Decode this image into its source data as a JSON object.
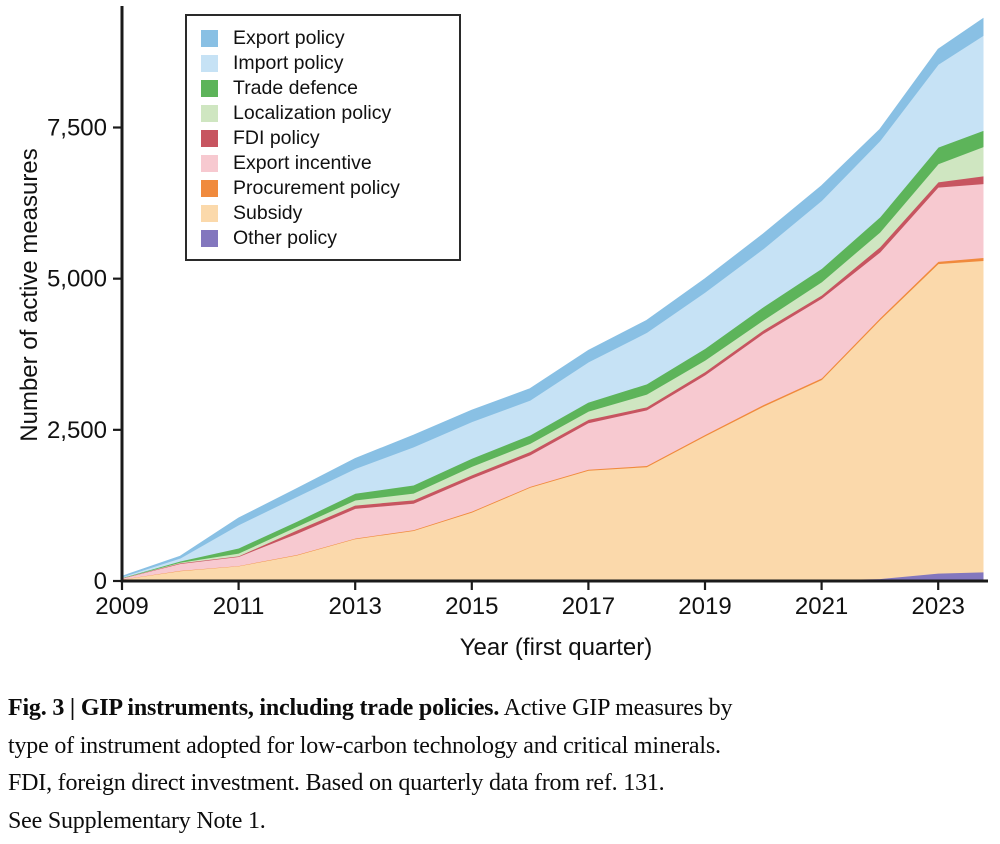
{
  "figure": {
    "y_axis_label": "Number of active measures",
    "x_axis_label": "Year (first quarter)"
  },
  "legend": {
    "items": [
      {
        "label": "Export policy",
        "color": "#89c0e4"
      },
      {
        "label": "Import policy",
        "color": "#c6e2f5"
      },
      {
        "label": "Trade defence",
        "color": "#5db45a"
      },
      {
        "label": "Localization policy",
        "color": "#cfe6c1"
      },
      {
        "label": "FDI policy",
        "color": "#c75560"
      },
      {
        "label": "Export incentive",
        "color": "#f7c9d0"
      },
      {
        "label": "Procurement policy",
        "color": "#f08a3d"
      },
      {
        "label": "Subsidy",
        "color": "#fbd9ab"
      },
      {
        "label": "Other policy",
        "color": "#8377be"
      }
    ]
  },
  "chart_data": {
    "type": "area",
    "stacked": true,
    "title": "",
    "xlabel": "Year (first quarter)",
    "ylabel": "Number of active measures",
    "grid": false,
    "legend_position": "top-left",
    "xlim": [
      2009,
      2023.85
    ],
    "ylim": [
      0,
      9550
    ],
    "x": [
      2009,
      2010,
      2011,
      2012,
      2013,
      2014,
      2015,
      2016,
      2017,
      2018,
      2019,
      2020,
      2021,
      2022,
      2023,
      2023.75
    ],
    "series": [
      {
        "name": "other-policy",
        "label": "Other policy",
        "color": "#8377be",
        "values": [
          0,
          0,
          0,
          0,
          0,
          0,
          0,
          0,
          0,
          0,
          0,
          10,
          20,
          40,
          130,
          150
        ]
      },
      {
        "name": "subsidy",
        "label": "Subsidy",
        "color": "#fbd9ab",
        "values": [
          30,
          170,
          250,
          430,
          700,
          835,
          1140,
          1550,
          1830,
          1890,
          2400,
          2880,
          3310,
          4280,
          5120,
          5150
        ]
      },
      {
        "name": "procurement-policy",
        "label": "Procurement policy",
        "color": "#f08a3d",
        "values": [
          2,
          5,
          5,
          8,
          10,
          12,
          15,
          15,
          18,
          20,
          22,
          25,
          28,
          30,
          35,
          50
        ]
      },
      {
        "name": "export-incentive",
        "label": "Export incentive",
        "color": "#f7c9d0",
        "values": [
          15,
          115,
          150,
          350,
          490,
          440,
          545,
          520,
          770,
          920,
          985,
          1180,
          1315,
          1090,
          1230,
          1220
        ]
      },
      {
        "name": "fdi-policy",
        "label": "FDI policy",
        "color": "#c75560",
        "values": [
          3,
          10,
          10,
          55,
          55,
          55,
          55,
          55,
          55,
          50,
          55,
          55,
          55,
          85,
          85,
          130
        ]
      },
      {
        "name": "localization-policy",
        "label": "Localization policy",
        "color": "#cfe6c1",
        "values": [
          2,
          10,
          45,
          60,
          85,
          110,
          140,
          135,
          135,
          210,
          190,
          165,
          220,
          245,
          300,
          480
        ]
      },
      {
        "name": "trade-defence",
        "label": "Trade defence",
        "color": "#5db45a",
        "values": [
          5,
          20,
          85,
          85,
          110,
          135,
          135,
          140,
          150,
          170,
          195,
          220,
          220,
          250,
          275,
          270
        ]
      },
      {
        "name": "import-policy",
        "label": "Import policy",
        "color": "#c6e2f5",
        "values": [
          10,
          50,
          385,
          410,
          410,
          630,
          605,
          575,
          665,
          850,
          930,
          960,
          1125,
          1260,
          1370,
          1570
        ]
      },
      {
        "name": "export-policy",
        "label": "Export policy",
        "color": "#89c0e4",
        "values": [
          10,
          30,
          110,
          130,
          165,
          195,
          190,
          190,
          190,
          200,
          220,
          245,
          245,
          190,
          250,
          280
        ]
      }
    ],
    "xticks": [
      {
        "value": 2009,
        "label": "2009"
      },
      {
        "value": 2011,
        "label": "2011"
      },
      {
        "value": 2013,
        "label": "2013"
      },
      {
        "value": 2015,
        "label": "2015"
      },
      {
        "value": 2017,
        "label": "2017"
      },
      {
        "value": 2019,
        "label": "2019"
      },
      {
        "value": 2021,
        "label": "2021"
      },
      {
        "value": 2023,
        "label": "2023"
      }
    ],
    "yticks": [
      {
        "value": 0,
        "label": "0"
      },
      {
        "value": 2500,
        "label": "2,500"
      },
      {
        "value": 5000,
        "label": "5,000"
      },
      {
        "value": 7500,
        "label": "7,500"
      }
    ]
  },
  "caption": {
    "bold_lead": "Fig. 3 | GIP instruments, including trade policies.",
    "line1_rest": " Active GIP measures by",
    "line2": "type of instrument adopted for low-carbon technology and critical minerals.",
    "line3": "FDI, foreign direct investment. Based on quarterly data from ref. 131.",
    "line4": "See Supplementary Note 1."
  }
}
